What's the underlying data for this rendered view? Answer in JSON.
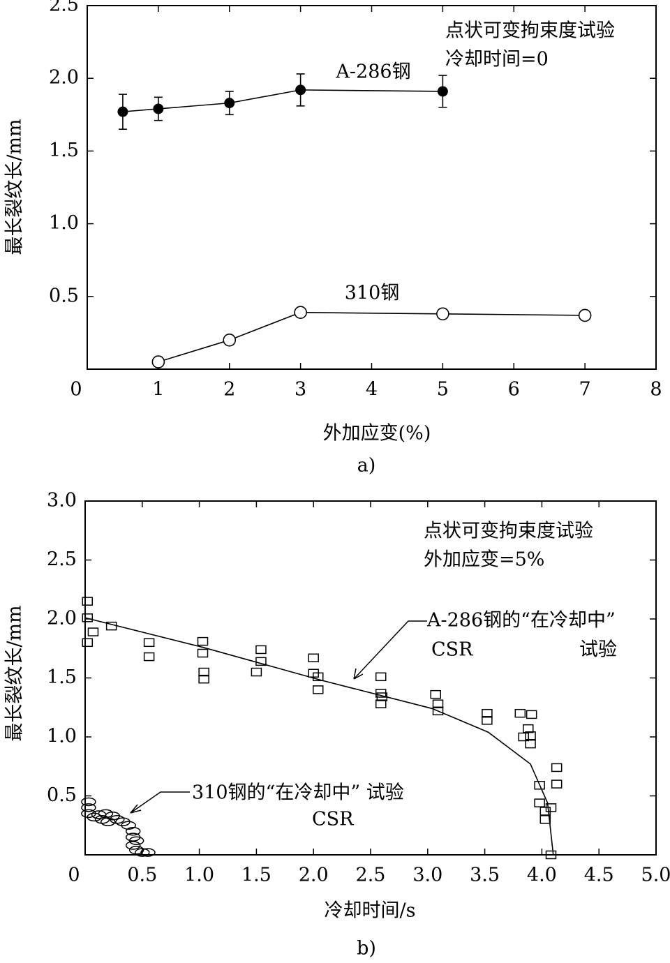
{
  "chart_data": [
    {
      "type": "line",
      "x_label": "外加应变(%)",
      "y_label": "最长裂纹长/mm",
      "caption": "a)",
      "annotations": [
        "点状可变拘束度试验",
        "冷却时间=0"
      ],
      "xlim": [
        0,
        8
      ],
      "xticks": [
        0,
        1,
        2,
        3,
        4,
        5,
        6,
        7,
        8
      ],
      "ylim": [
        0,
        2.5
      ],
      "yticks": [
        0.5,
        {
          "value": 1,
          "label": "1.0"
        },
        1.5,
        {
          "value": 2,
          "label": "2.0"
        },
        2.5
      ],
      "series": [
        {
          "name": "A-286钢",
          "color": "#000000",
          "marker": "filled-circle",
          "line": true,
          "x": [
            0.5,
            1,
            2,
            3,
            5
          ],
          "values": [
            1.77,
            1.79,
            1.83,
            1.92,
            1.91
          ],
          "errors": [
            0.12,
            0.08,
            0.08,
            0.11,
            0.11
          ]
        },
        {
          "name": "310钢",
          "color": "#000000",
          "marker": "open-circle",
          "line": true,
          "x": [
            1,
            2,
            3,
            5,
            7
          ],
          "values": [
            0.05,
            0.2,
            0.39,
            0.38,
            0.37
          ]
        }
      ]
    },
    {
      "type": "scatter",
      "x_label": "冷却时间/s",
      "y_label": "最长裂纹长/mm",
      "caption": "b)",
      "annotations": [
        "点状可变拘束度试验",
        "外加应变=5%",
        "A-286钢的“在冷却中”",
        "CSR",
        "试验",
        "310钢的“在冷却中” 试验",
        "CSR"
      ],
      "xlim": [
        0,
        5
      ],
      "xticks": [
        0,
        0.5,
        {
          "value": 1,
          "label": "1.0"
        },
        1.5,
        {
          "value": 2,
          "label": "2.0"
        },
        2.5,
        {
          "value": 3,
          "label": "3.0"
        },
        3.5,
        {
          "value": 4,
          "label": "4.0"
        },
        4.5,
        {
          "value": 5,
          "label": "5.0"
        }
      ],
      "ylim": [
        0,
        3
      ],
      "yticks": [
        0.5,
        {
          "value": 1,
          "label": "1.0"
        },
        1.5,
        {
          "value": 2,
          "label": "2.0"
        },
        2.5,
        {
          "value": 3,
          "label": "3.0"
        }
      ],
      "series": [
        {
          "color": "#000000",
          "marker": "square",
          "line": false,
          "x": [
            0.02,
            0.02,
            0.02,
            0.07,
            0.23,
            0.56,
            0.56,
            1.03,
            1.03,
            1.04,
            1.04,
            1.54,
            1.54,
            1.5,
            2.0,
            2.0,
            2.04,
            2.04,
            2.59,
            2.59,
            2.6,
            2.59,
            3.07,
            3.09,
            3.09,
            3.52,
            3.52,
            3.81,
            3.91,
            3.84,
            3.88,
            3.9,
            3.9,
            3.98,
            3.98,
            4.03,
            4.03,
            4.08,
            4.13,
            4.13,
            4.08
          ],
          "values": [
            2.15,
            2.01,
            1.8,
            1.89,
            1.94,
            1.8,
            1.68,
            1.81,
            1.71,
            1.55,
            1.49,
            1.74,
            1.64,
            1.55,
            1.67,
            1.54,
            1.51,
            1.4,
            1.51,
            1.37,
            1.34,
            1.28,
            1.36,
            1.28,
            1.22,
            1.2,
            1.14,
            1.2,
            1.19,
            1.0,
            1.07,
            1.01,
            0.94,
            0.59,
            0.44,
            0.37,
            0.3,
            0.4,
            0.74,
            0.6,
            0
          ]
        },
        {
          "color": "#000000",
          "marker": "ellipse",
          "line": false,
          "x": [
            0.03,
            0.03,
            0.03,
            0.08,
            0.12,
            0.15,
            0.18,
            0.2,
            0.24,
            0.28,
            0.33,
            0.38,
            0.42,
            0.42,
            0.45,
            0.42,
            0.45,
            0.5,
            0.55
          ],
          "values": [
            0.45,
            0.4,
            0.35,
            0.32,
            0.34,
            0.3,
            0.35,
            0.28,
            0.33,
            0.3,
            0.28,
            0.25,
            0.2,
            0.15,
            0.12,
            0.08,
            0.04,
            0.02,
            0.02
          ]
        },
        {
          "color": "#000000",
          "marker": "none",
          "line": true,
          "x": [
            0,
            1.03,
            2.07,
            3.04,
            3.53,
            3.9,
            4.05,
            4.1,
            4.63
          ],
          "values": [
            2.01,
            1.76,
            1.48,
            1.24,
            1.04,
            0.77,
            0.44,
            0,
            0
          ]
        }
      ]
    }
  ]
}
